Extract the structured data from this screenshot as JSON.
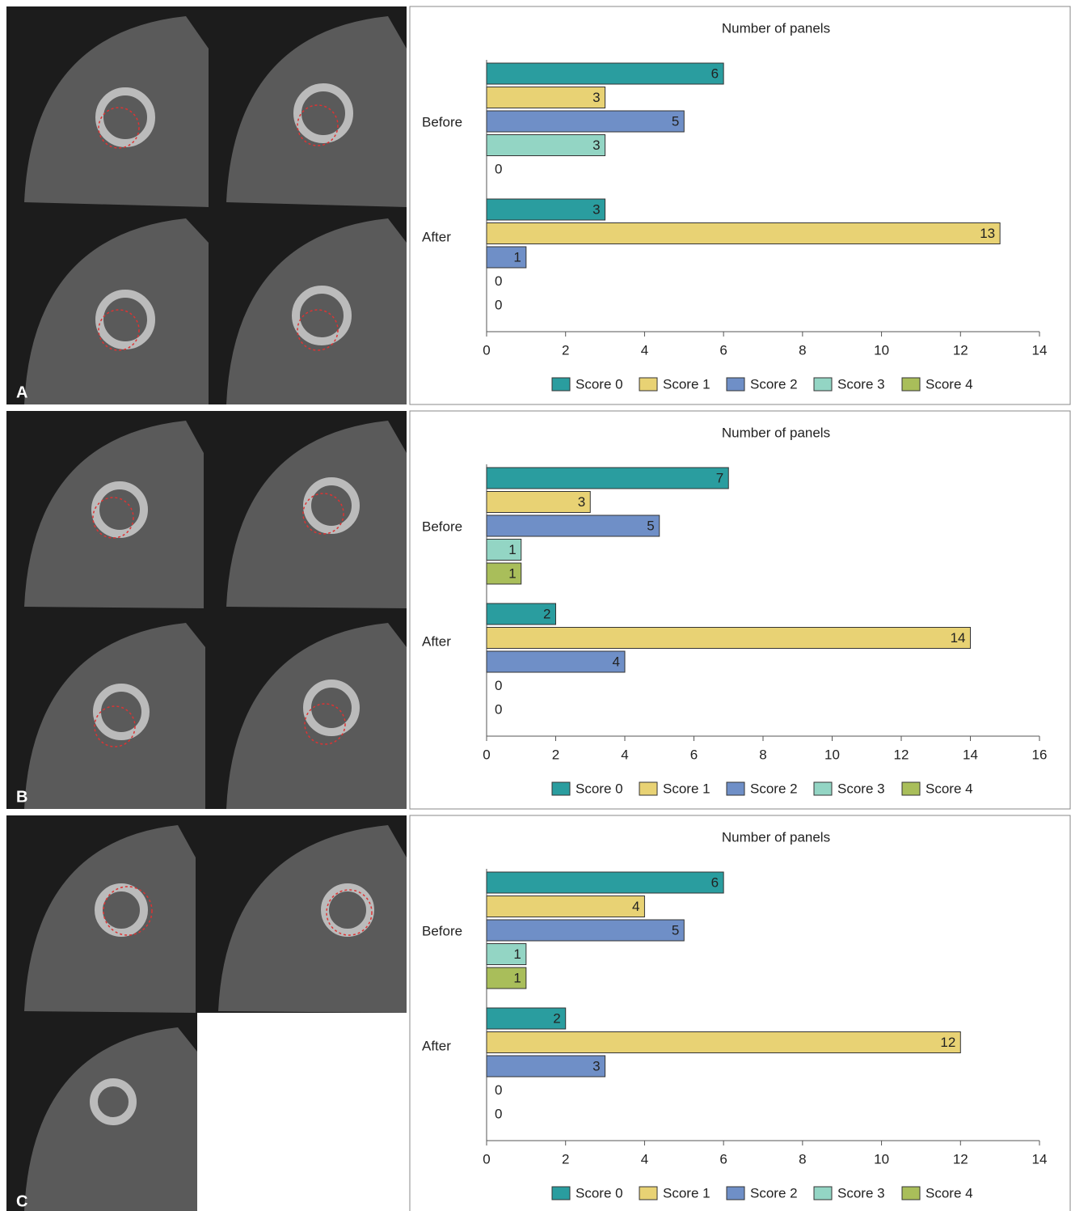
{
  "chart_data": [
    {
      "type": "barh",
      "panel_label": "A",
      "title": "Number of panels",
      "categories": [
        "Before",
        "After"
      ],
      "series": [
        {
          "name": "Score 0",
          "color": "#2a9d9f",
          "values": [
            6,
            3
          ]
        },
        {
          "name": "Score 1",
          "color": "#e8d274",
          "values": [
            3,
            13
          ]
        },
        {
          "name": "Score 2",
          "color": "#6f8fc7",
          "values": [
            5,
            1
          ]
        },
        {
          "name": "Score 3",
          "color": "#93d5c4",
          "values": [
            3,
            0
          ]
        },
        {
          "name": "Score 4",
          "color": "#a9be5a",
          "values": [
            0,
            0
          ]
        }
      ],
      "xlim": [
        0,
        14
      ],
      "xticks": [
        0,
        2,
        4,
        6,
        8,
        10,
        12,
        14
      ],
      "legend": "bottom"
    },
    {
      "type": "barh",
      "panel_label": "B",
      "title": "Number of panels",
      "categories": [
        "Before",
        "After"
      ],
      "series": [
        {
          "name": "Score 0",
          "color": "#2a9d9f",
          "values": [
            7,
            2
          ]
        },
        {
          "name": "Score 1",
          "color": "#e8d274",
          "values": [
            3,
            14
          ]
        },
        {
          "name": "Score 2",
          "color": "#6f8fc7",
          "values": [
            5,
            4
          ]
        },
        {
          "name": "Score 3",
          "color": "#93d5c4",
          "values": [
            1,
            0
          ]
        },
        {
          "name": "Score 4",
          "color": "#a9be5a",
          "values": [
            1,
            0
          ]
        }
      ],
      "xlim": [
        0,
        16
      ],
      "xticks": [
        0,
        2,
        4,
        6,
        8,
        10,
        12,
        14,
        16
      ],
      "legend": "bottom"
    },
    {
      "type": "barh",
      "panel_label": "C",
      "title": "Number of panels",
      "categories": [
        "Before",
        "After"
      ],
      "series": [
        {
          "name": "Score 0",
          "color": "#2a9d9f",
          "values": [
            6,
            2
          ]
        },
        {
          "name": "Score 1",
          "color": "#e8d274",
          "values": [
            4,
            12
          ]
        },
        {
          "name": "Score 2",
          "color": "#6f8fc7",
          "values": [
            5,
            3
          ]
        },
        {
          "name": "Score 3",
          "color": "#93d5c4",
          "values": [
            1,
            0
          ]
        },
        {
          "name": "Score 4",
          "color": "#a9be5a",
          "values": [
            1,
            0
          ]
        }
      ],
      "xlim": [
        0,
        14
      ],
      "xticks": [
        0,
        2,
        4,
        6,
        8,
        10,
        12,
        14
      ],
      "legend": "bottom"
    }
  ]
}
